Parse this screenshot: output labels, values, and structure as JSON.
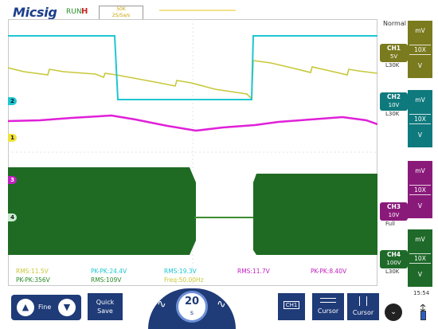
{
  "header": {
    "logo": "Micsig",
    "run_state": "RUN",
    "trigger_mode_letter": "H",
    "timebase_box": [
      "50K",
      "2S/Sa/s"
    ],
    "acquire_mode": "Normal"
  },
  "channels": [
    {
      "id": "CH1",
      "marker": "1",
      "scale": "5V",
      "coupling": "L30K",
      "color": "#c8c83a",
      "probe": "10X",
      "unit_top": "mV",
      "unit_bottom": "V"
    },
    {
      "id": "CH2",
      "marker": "2",
      "scale": "10V",
      "coupling": "L30K",
      "color": "#1fc6d2",
      "probe": "10X",
      "unit_top": "mV",
      "unit_bottom": "V"
    },
    {
      "id": "CH3",
      "marker": "3",
      "scale": "10V",
      "coupling": "Full",
      "color": "#e020d8",
      "probe": "10X",
      "unit_top": "mV",
      "unit_bottom": "V"
    },
    {
      "id": "CH4",
      "marker": "4",
      "scale": "100V",
      "coupling": "L30K",
      "color": "#1f7a2a",
      "probe": "10X",
      "unit_top": "mV",
      "unit_bottom": "V"
    }
  ],
  "measurements": {
    "ch1_rms": "RMS:11.5V",
    "ch2_pkpk": "PK-PK:24.4V",
    "ch2_rms": "RMS:19.3V",
    "ch3_rms": "RMS:11.7V",
    "ch3_pkpk": "PK-PK:8.40V",
    "ch4_pkpk": "PK-PK:356V",
    "ch4_rms": "RMS:109V",
    "frequency": "Freq:50.00Hz"
  },
  "toolbar": {
    "fine_label": "Fine",
    "quick_save_line1": "Quick",
    "quick_save_line2": "Save",
    "timebase_value": "20",
    "timebase_unit": "s",
    "ch_button": "CH1",
    "cursor1": "Cursor",
    "cursor2": "Cursor",
    "clock": "15:54"
  },
  "colors": {
    "bar_dark": "#1f3b78",
    "ch1_panel": "#7a7a1e",
    "ch2_panel": "#0f7a7d",
    "ch3_panel": "#8a1a7a",
    "ch4_panel": "#1f6a2a"
  }
}
